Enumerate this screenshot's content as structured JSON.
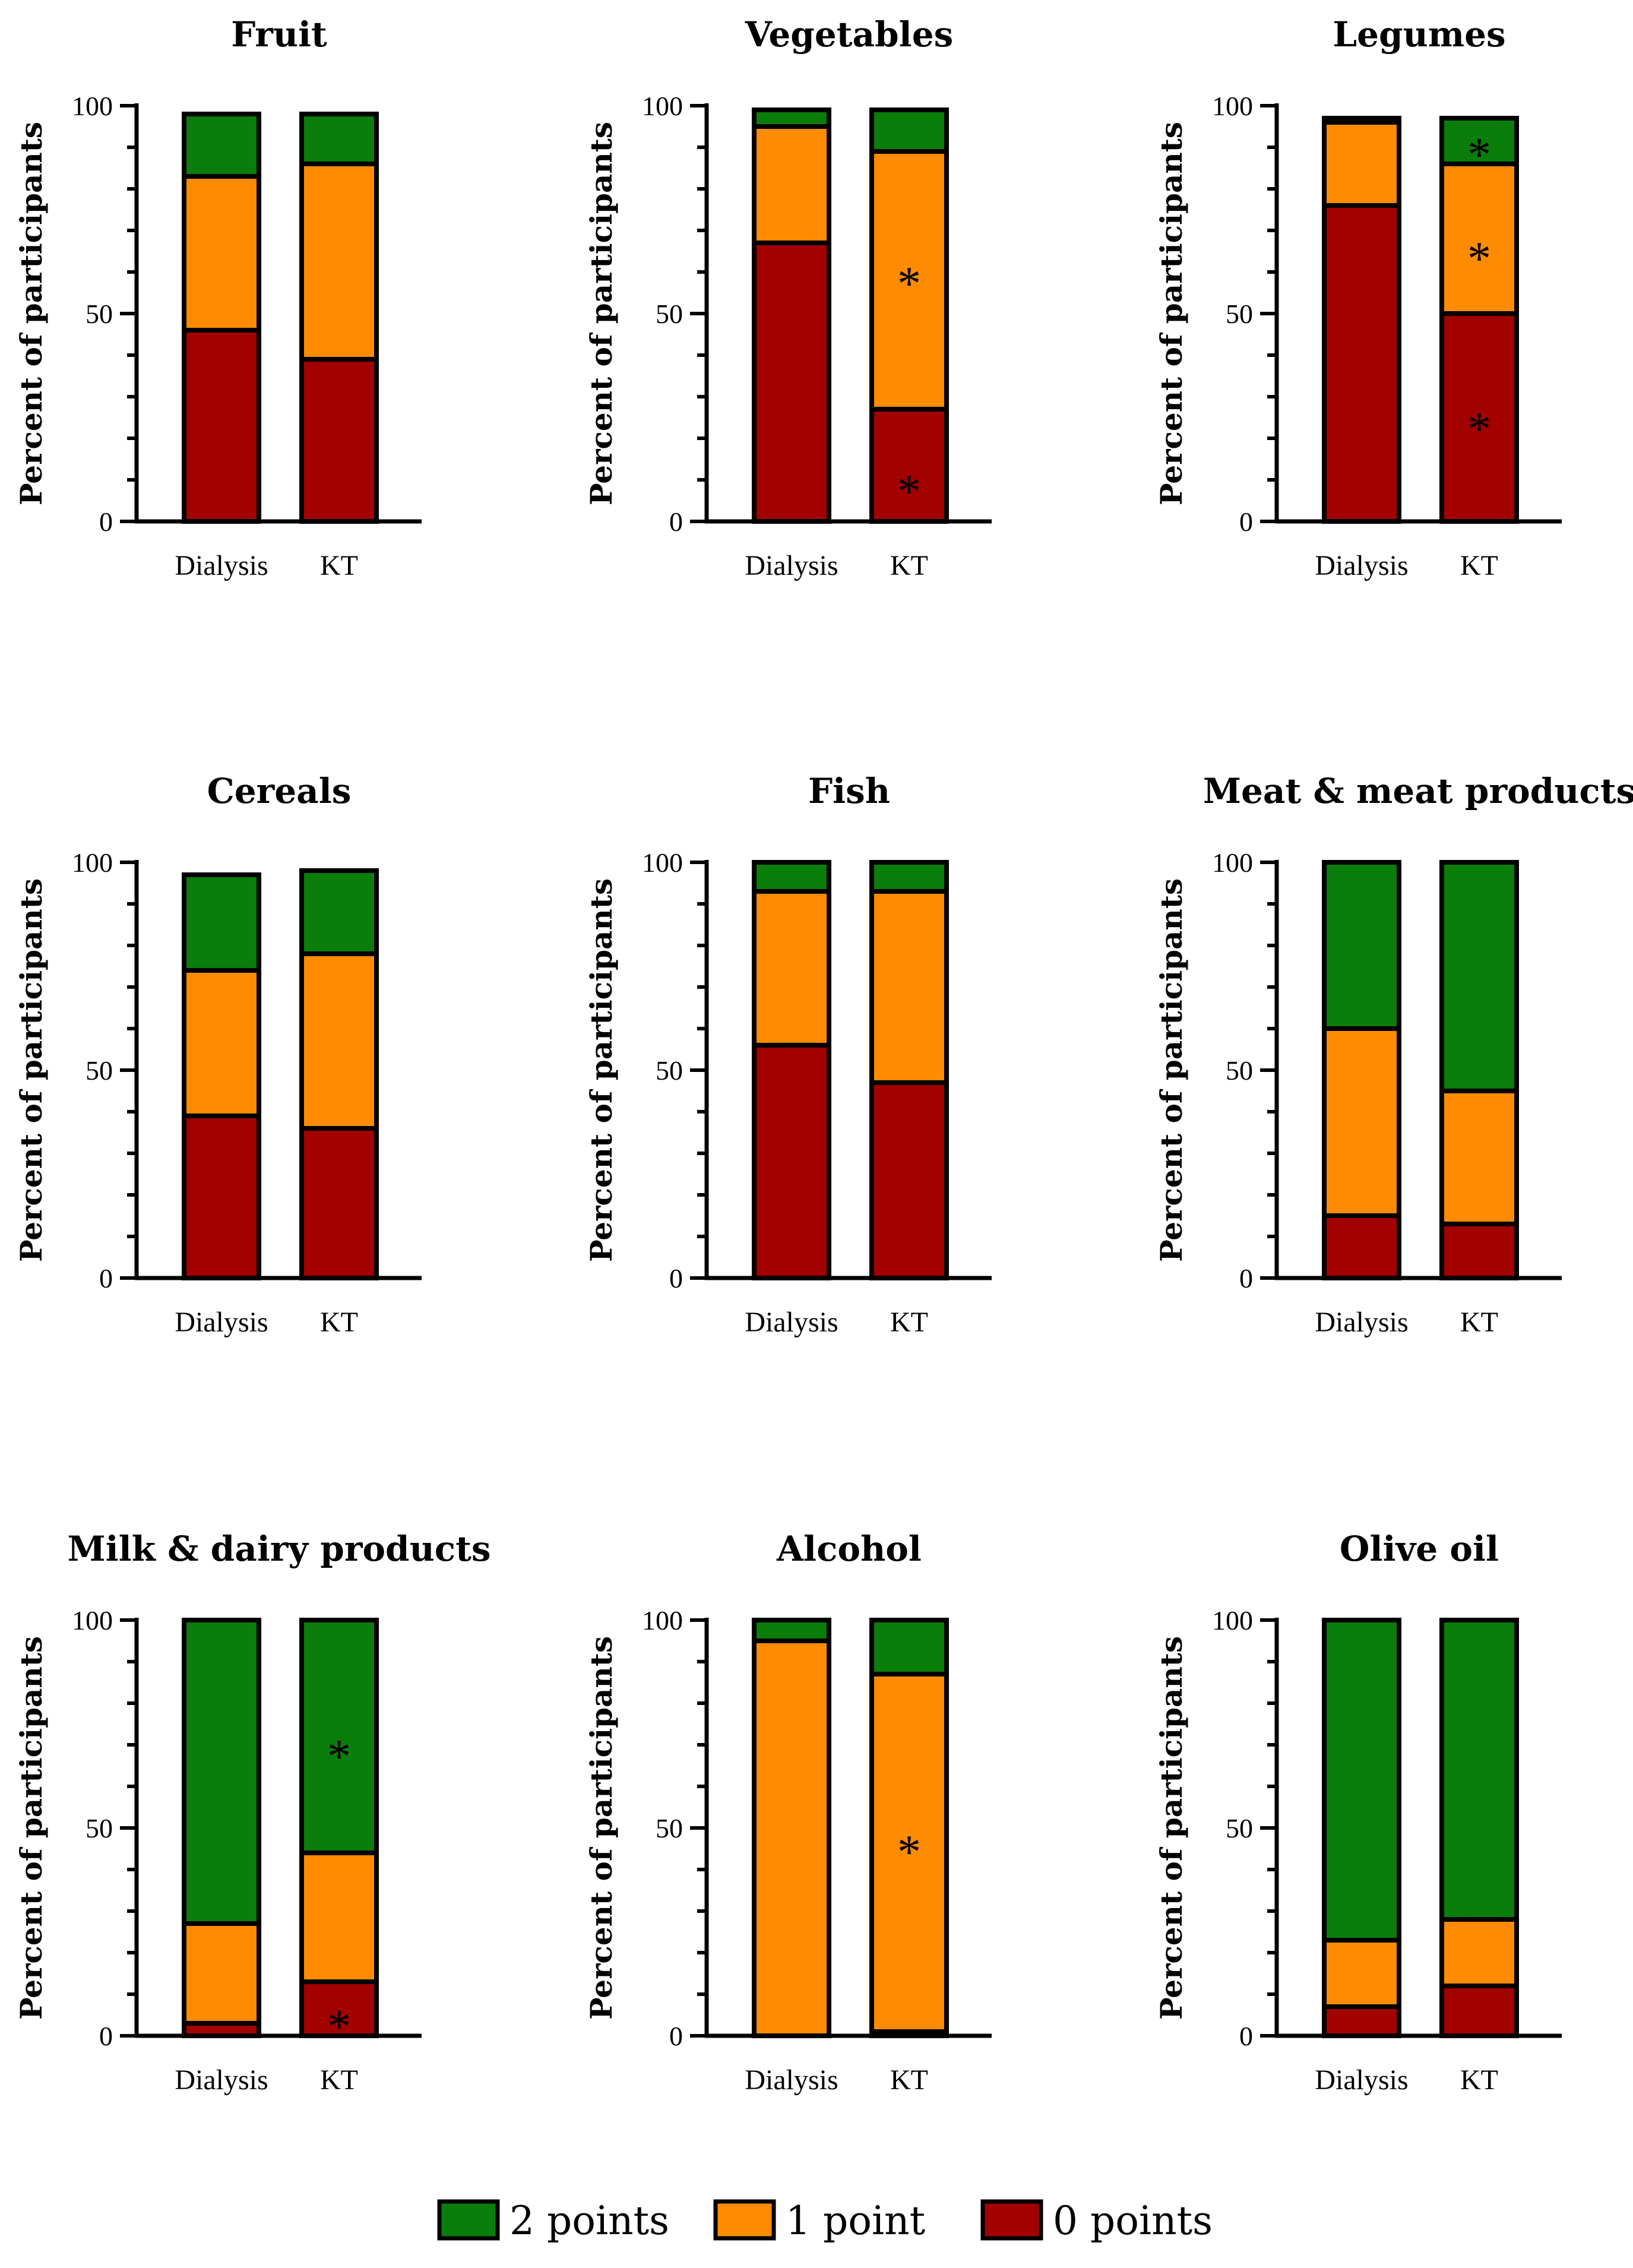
{
  "colors": {
    "points_2": "#0a7d0a",
    "points_1": "#ff8c00",
    "points_0": "#a30000"
  },
  "legend": [
    {
      "key": "points_2",
      "label": "2 points"
    },
    {
      "key": "points_1",
      "label": "1 point"
    },
    {
      "key": "points_0",
      "label": "0 points"
    }
  ],
  "chart_data": [
    {
      "type": "bar",
      "stacked": true,
      "title": "Fruit",
      "ylabel": "Percent of participants",
      "ylim": [
        0,
        100
      ],
      "yticks": [
        0,
        50,
        100
      ],
      "categories": [
        "Dialysis",
        "KT"
      ],
      "series": [
        {
          "name": "0 points",
          "values": [
            46,
            39
          ]
        },
        {
          "name": "1 point",
          "values": [
            37,
            47
          ]
        },
        {
          "name": "2 points",
          "values": [
            15,
            12
          ]
        }
      ],
      "annotations": []
    },
    {
      "type": "bar",
      "stacked": true,
      "title": "Vegetables",
      "ylabel": "Percent of participants",
      "ylim": [
        0,
        100
      ],
      "yticks": [
        0,
        50,
        100
      ],
      "categories": [
        "Dialysis",
        "KT"
      ],
      "series": [
        {
          "name": "0 points",
          "values": [
            67,
            27
          ]
        },
        {
          "name": "1 point",
          "values": [
            28,
            62
          ]
        },
        {
          "name": "2 points",
          "values": [
            4,
            10
          ]
        }
      ],
      "annotations": [
        {
          "text": "*",
          "category": 1,
          "y": 60
        },
        {
          "text": "*",
          "category": 1,
          "y": 10
        }
      ]
    },
    {
      "type": "bar",
      "stacked": true,
      "title": "Legumes",
      "ylabel": "Percent of participants",
      "ylim": [
        0,
        100
      ],
      "yticks": [
        0,
        50,
        100
      ],
      "categories": [
        "Dialysis",
        "KT"
      ],
      "series": [
        {
          "name": "0 points",
          "values": [
            76,
            50
          ]
        },
        {
          "name": "1 point",
          "values": [
            20,
            36
          ]
        },
        {
          "name": "2 points",
          "values": [
            1,
            11
          ]
        }
      ],
      "annotations": [
        {
          "text": "*",
          "category": 1,
          "y": 91
        },
        {
          "text": "*",
          "category": 1,
          "y": 66
        },
        {
          "text": "*",
          "category": 1,
          "y": 25
        }
      ]
    },
    {
      "type": "bar",
      "stacked": true,
      "title": "Cereals",
      "ylabel": "Percent of participants",
      "ylim": [
        0,
        100
      ],
      "yticks": [
        0,
        50,
        100
      ],
      "categories": [
        "Dialysis",
        "KT"
      ],
      "series": [
        {
          "name": "0 points",
          "values": [
            39,
            36
          ]
        },
        {
          "name": "1 point",
          "values": [
            35,
            42
          ]
        },
        {
          "name": "2 points",
          "values": [
            23,
            20
          ]
        }
      ],
      "annotations": []
    },
    {
      "type": "bar",
      "stacked": true,
      "title": "Fish",
      "ylabel": "Percent of participants",
      "ylim": [
        0,
        100
      ],
      "yticks": [
        0,
        50,
        100
      ],
      "categories": [
        "Dialysis",
        "KT"
      ],
      "series": [
        {
          "name": "0 points",
          "values": [
            56,
            47
          ]
        },
        {
          "name": "1 point",
          "values": [
            37,
            46
          ]
        },
        {
          "name": "2 points",
          "values": [
            7,
            7
          ]
        }
      ],
      "annotations": []
    },
    {
      "type": "bar",
      "stacked": true,
      "title": "Meat & meat products",
      "ylabel": "Percent of participants",
      "ylim": [
        0,
        100
      ],
      "yticks": [
        0,
        50,
        100
      ],
      "categories": [
        "Dialysis",
        "KT"
      ],
      "series": [
        {
          "name": "0 points",
          "values": [
            15,
            13
          ]
        },
        {
          "name": "1 point",
          "values": [
            45,
            32
          ]
        },
        {
          "name": "2 points",
          "values": [
            40,
            55
          ]
        }
      ],
      "annotations": []
    },
    {
      "type": "bar",
      "stacked": true,
      "title": "Milk & dairy products",
      "ylabel": "Percent of participants",
      "ylim": [
        0,
        100
      ],
      "yticks": [
        0,
        50,
        100
      ],
      "categories": [
        "Dialysis",
        "KT"
      ],
      "series": [
        {
          "name": "0 points",
          "values": [
            3,
            13
          ]
        },
        {
          "name": "1 point",
          "values": [
            24,
            31
          ]
        },
        {
          "name": "2 points",
          "values": [
            73,
            56
          ]
        }
      ],
      "annotations": [
        {
          "text": "*",
          "category": 1,
          "y": 70
        },
        {
          "text": "*",
          "category": 1,
          "y": 5
        }
      ]
    },
    {
      "type": "bar",
      "stacked": true,
      "title": "Alcohol",
      "ylabel": "Percent of participants",
      "ylim": [
        0,
        100
      ],
      "yticks": [
        0,
        50,
        100
      ],
      "categories": [
        "Dialysis",
        "KT"
      ],
      "series": [
        {
          "name": "0 points",
          "values": [
            0,
            1
          ]
        },
        {
          "name": "1 point",
          "values": [
            95,
            86
          ]
        },
        {
          "name": "2 points",
          "values": [
            5,
            13
          ]
        }
      ],
      "annotations": [
        {
          "text": "*",
          "category": 1,
          "y": 47
        }
      ]
    },
    {
      "type": "bar",
      "stacked": true,
      "title": "Olive oil",
      "ylabel": "Percent of participants",
      "ylim": [
        0,
        100
      ],
      "yticks": [
        0,
        50,
        100
      ],
      "categories": [
        "Dialysis",
        "KT"
      ],
      "series": [
        {
          "name": "0 points",
          "values": [
            7,
            12
          ]
        },
        {
          "name": "1 point",
          "values": [
            16,
            16
          ]
        },
        {
          "name": "2 points",
          "values": [
            77,
            72
          ]
        }
      ],
      "annotations": []
    }
  ]
}
